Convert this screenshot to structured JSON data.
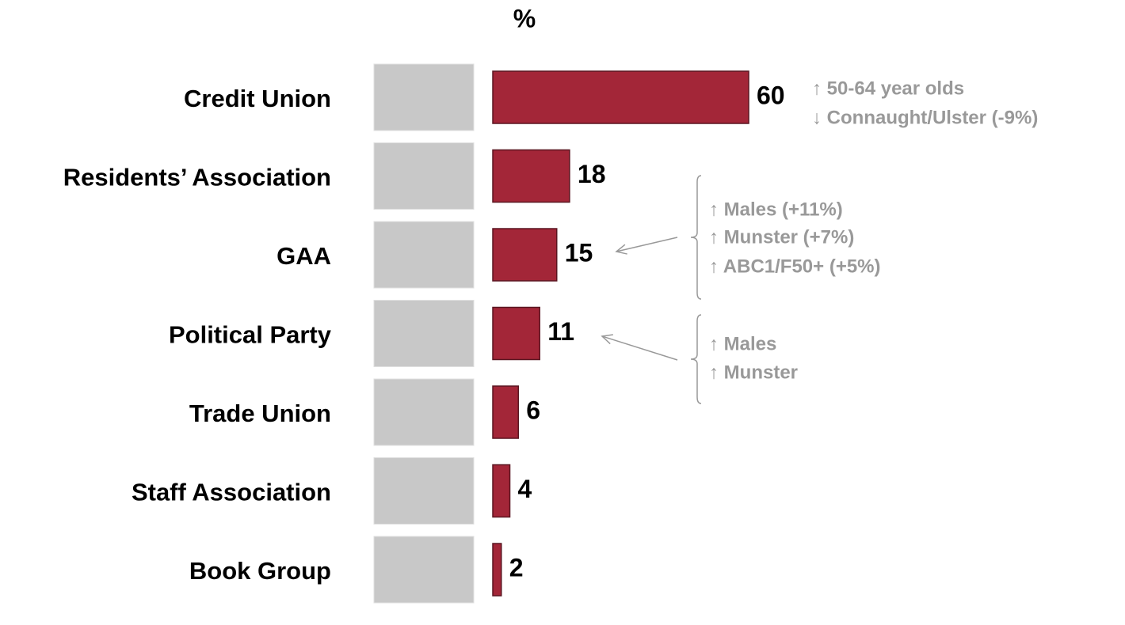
{
  "chart_data": {
    "type": "hbar",
    "axis_label": "%",
    "categories": [
      "Credit Union",
      "Residents’ Association",
      "GAA",
      "Political Party",
      "Trade Union",
      "Staff Association",
      "Book Group"
    ],
    "values": [
      60,
      18,
      15,
      11,
      6,
      4,
      2
    ],
    "color": "#a32638",
    "annotations": [
      {
        "lines": [
          "↑ 50-64 year olds",
          "↓ Connaught/Ulster (-9%)"
        ]
      },
      {
        "lines": [
          "↑ Males (+11%)",
          "↑ Munster (+7%)",
          "↑ ABC1/F50+ (+5%)"
        ]
      },
      {
        "lines": [
          "↑ Males",
          "↑ Munster"
        ]
      }
    ]
  }
}
